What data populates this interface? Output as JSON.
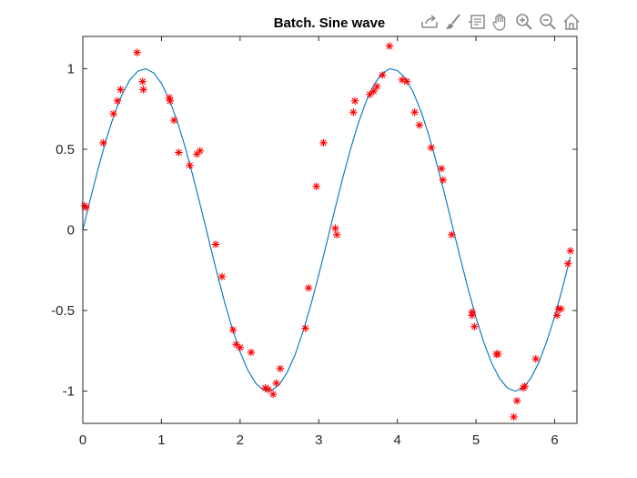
{
  "figure": {
    "toolbar": [
      {
        "name": "export-icon",
        "label": "Export"
      },
      {
        "name": "brush-icon",
        "label": "Brush"
      },
      {
        "name": "datatip-icon",
        "label": "Data Tips"
      },
      {
        "name": "pan-icon",
        "label": "Pan"
      },
      {
        "name": "zoom-in-icon",
        "label": "Zoom In"
      },
      {
        "name": "zoom-out-icon",
        "label": "Zoom Out"
      },
      {
        "name": "home-icon",
        "label": "Restore View"
      }
    ],
    "colors": {
      "line": "#0072BD",
      "markers": "#FF0000",
      "axis": "#262626",
      "toolbar_icon": "#8a8a8a"
    }
  },
  "chart_data": {
    "type": "scatter",
    "title": "Batch. Sine wave",
    "xlabel": "",
    "ylabel": "",
    "xlim": [
      0,
      6.2832
    ],
    "ylim": [
      -1.2,
      1.2
    ],
    "xticks": [
      0,
      1,
      2,
      3,
      4,
      5,
      6
    ],
    "yticks": [
      -1,
      -0.5,
      0,
      0.5,
      1
    ],
    "grid": false,
    "legend": false,
    "series": [
      {
        "kind": "line",
        "function": "sin(2x)",
        "color": "#0072BD",
        "x": [
          0,
          0.1,
          0.2,
          0.3,
          0.4,
          0.5,
          0.6,
          0.7,
          0.8,
          0.9,
          1.0,
          1.1,
          1.2,
          1.3,
          1.4,
          1.5,
          1.6,
          1.7,
          1.8,
          1.9,
          2.0,
          2.1,
          2.2,
          2.3,
          2.4,
          2.5,
          2.6,
          2.7,
          2.8,
          2.9,
          3.0,
          3.1,
          3.2,
          3.3,
          3.4,
          3.5,
          3.6,
          3.7,
          3.8,
          3.9,
          4.0,
          4.1,
          4.2,
          4.3,
          4.4,
          4.5,
          4.6,
          4.7,
          4.8,
          4.9,
          5.0,
          5.1,
          5.2,
          5.3,
          5.4,
          5.5,
          5.6,
          5.7,
          5.8,
          5.9,
          6.0,
          6.1,
          6.2
        ],
        "y": [
          0.0,
          0.199,
          0.389,
          0.565,
          0.717,
          0.841,
          0.932,
          0.985,
          1.0,
          0.974,
          0.909,
          0.808,
          0.675,
          0.516,
          0.335,
          0.141,
          -0.058,
          -0.256,
          -0.443,
          -0.612,
          -0.757,
          -0.872,
          -0.952,
          -0.994,
          -0.996,
          -0.959,
          -0.883,
          -0.773,
          -0.631,
          -0.465,
          -0.279,
          -0.083,
          0.117,
          0.312,
          0.494,
          0.657,
          0.794,
          0.899,
          0.968,
          0.999,
          0.989,
          0.941,
          0.855,
          0.736,
          0.587,
          0.412,
          0.223,
          0.024,
          -0.175,
          -0.367,
          -0.544,
          -0.699,
          -0.827,
          -0.922,
          -0.981,
          -1.0,
          -0.979,
          -0.918,
          -0.821,
          -0.691,
          -0.537,
          -0.359,
          -0.166
        ]
      },
      {
        "kind": "scatter",
        "marker": "*",
        "color": "#FF0000",
        "x": [
          0.02,
          0.04,
          0.26,
          0.39,
          0.44,
          0.48,
          0.69,
          0.76,
          0.77,
          1.1,
          1.11,
          1.16,
          1.22,
          1.36,
          1.45,
          1.49,
          1.69,
          1.77,
          1.91,
          1.95,
          2.0,
          2.14,
          2.32,
          2.36,
          2.42,
          2.46,
          2.51,
          2.83,
          2.87,
          2.97,
          3.06,
          3.21,
          3.23,
          3.44,
          3.46,
          3.65,
          3.7,
          3.74,
          3.81,
          3.9,
          4.06,
          4.12,
          4.22,
          4.28,
          4.43,
          4.56,
          4.58,
          4.69,
          4.95,
          4.95,
          4.98,
          5.26,
          5.28,
          5.48,
          5.52,
          5.6,
          5.62,
          5.76,
          6.03,
          6.05,
          6.08,
          6.17,
          6.2
        ],
        "y": [
          0.15,
          0.14,
          0.54,
          0.72,
          0.8,
          0.87,
          1.1,
          0.92,
          0.87,
          0.82,
          0.8,
          0.68,
          0.48,
          0.4,
          0.47,
          0.49,
          -0.09,
          -0.29,
          -0.62,
          -0.71,
          -0.73,
          -0.76,
          -0.98,
          -0.99,
          -1.02,
          -0.95,
          -0.86,
          -0.61,
          -0.36,
          0.27,
          0.54,
          0.01,
          -0.03,
          0.73,
          0.8,
          0.84,
          0.86,
          0.89,
          0.96,
          1.14,
          0.93,
          0.92,
          0.73,
          0.65,
          0.51,
          0.38,
          0.31,
          -0.03,
          -0.51,
          -0.53,
          -0.6,
          -0.77,
          -0.77,
          -1.16,
          -1.06,
          -0.98,
          -0.97,
          -0.8,
          -0.53,
          -0.49,
          -0.49,
          -0.21,
          -0.13
        ]
      }
    ]
  }
}
